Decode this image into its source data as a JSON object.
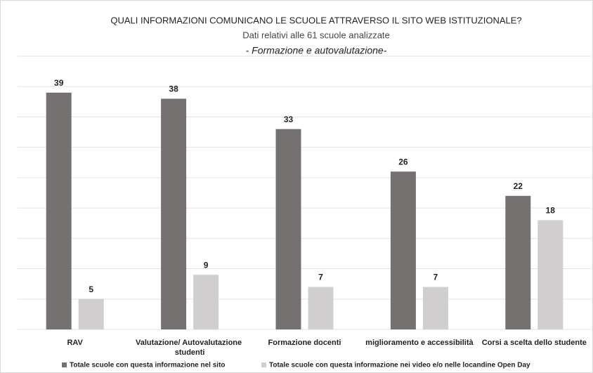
{
  "chart_data": {
    "type": "bar",
    "title": "QUALI INFORMAZIONI COMUNICANO LE SCUOLE ATTRAVERSO IL SITO WEB ISTITUZIONALE?",
    "subtitle": "Dati relativi alle 61 scuole analizzate",
    "section": "- Formazione e autovalutazione-",
    "categories": [
      "RAV",
      "Valutazione/ Autovalutazione studenti",
      "Formazione docenti",
      "miglioramento e accessibilità",
      "Corsi a scelta dello studente"
    ],
    "series": [
      {
        "name": "Totale scuole con questa informazione nel sito",
        "color": "#767171",
        "values": [
          39,
          38,
          33,
          26,
          22
        ]
      },
      {
        "name": "Totale scuole con questa informazione nei video e/o nelle locandine Open Day",
        "color": "#d0cece",
        "values": [
          5,
          9,
          7,
          7,
          18
        ]
      }
    ],
    "ylim": [
      0,
      45
    ],
    "yticks": [
      0,
      5,
      10,
      15,
      20,
      25,
      30,
      35,
      40,
      45
    ],
    "grid": true,
    "legend": "bottom"
  }
}
